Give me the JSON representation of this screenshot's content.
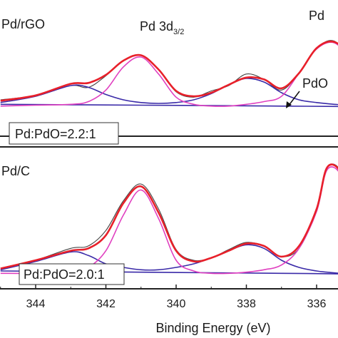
{
  "chart_data": [
    {
      "type": "line",
      "panel_label": "Pd/rGO",
      "annotations": [
        "Pd 3d3/2",
        "Pd",
        "PdO"
      ],
      "ratio_label": "Pd:PdO=2.2:1",
      "xlim": [
        345.0,
        334.6
      ],
      "x_reversed": true,
      "series": [
        {
          "role": "raw",
          "color": "#444444",
          "x": [
            345.0,
            344.0,
            343.0,
            342.5,
            342.0,
            341.5,
            341.0,
            340.5,
            340.0,
            339.5,
            339.0,
            338.5,
            338.0,
            337.5,
            337.0,
            336.5,
            336.0,
            335.5,
            335.0,
            334.6
          ],
          "y": [
            0.08,
            0.13,
            0.24,
            0.22,
            0.35,
            0.52,
            0.58,
            0.42,
            0.17,
            0.11,
            0.18,
            0.24,
            0.37,
            0.31,
            0.19,
            0.38,
            0.66,
            0.74,
            0.52,
            0.33
          ]
        },
        {
          "role": "envelope",
          "color": "#e8202a",
          "x": [
            345.0,
            344.0,
            343.0,
            342.5,
            342.0,
            341.5,
            341.0,
            340.5,
            340.0,
            339.5,
            339.0,
            338.5,
            338.0,
            337.5,
            337.0,
            336.5,
            336.0,
            335.5,
            335.0,
            334.6
          ],
          "y": [
            0.07,
            0.13,
            0.26,
            0.27,
            0.36,
            0.52,
            0.58,
            0.42,
            0.18,
            0.12,
            0.16,
            0.25,
            0.33,
            0.31,
            0.21,
            0.38,
            0.66,
            0.73,
            0.56,
            0.34
          ]
        },
        {
          "role": "Pd component",
          "color": "#e040c0",
          "x": [
            345.0,
            344.0,
            343.0,
            342.5,
            342.0,
            341.5,
            341.0,
            340.5,
            340.0,
            339.5,
            339.0,
            338.5,
            338.0,
            337.5,
            337.0,
            336.5,
            336.0,
            335.5,
            335.0,
            334.6
          ],
          "y": [
            0.01,
            0.02,
            0.03,
            0.06,
            0.19,
            0.45,
            0.56,
            0.37,
            0.11,
            0.03,
            0.01,
            0.01,
            0.03,
            0.06,
            0.12,
            0.38,
            0.65,
            0.72,
            0.52,
            0.3
          ]
        },
        {
          "role": "PdO component",
          "color": "#3a2aa8",
          "x": [
            345.0,
            344.0,
            343.0,
            342.5,
            342.0,
            341.5,
            341.0,
            340.5,
            340.0,
            339.5,
            339.0,
            338.5,
            338.0,
            337.5,
            337.0,
            336.5,
            336.0,
            335.5,
            335.0,
            334.6
          ],
          "y": [
            0.05,
            0.12,
            0.24,
            0.22,
            0.14,
            0.08,
            0.05,
            0.04,
            0.05,
            0.08,
            0.15,
            0.25,
            0.32,
            0.28,
            0.16,
            0.08,
            0.05,
            0.03,
            0.02,
            0.01
          ]
        },
        {
          "role": "background",
          "color": "#3a2aa8",
          "x": [
            345.0,
            343.0,
            341.0,
            339.0,
            337.0,
            335.0,
            334.6
          ],
          "y": [
            0.03,
            0.025,
            0.02,
            0.015,
            0.01,
            0.005,
            0.0
          ]
        }
      ]
    },
    {
      "type": "line",
      "panel_label": "Pd/C",
      "ratio_label": "Pd:PdO=2.0:1",
      "xlim": [
        345.0,
        334.6
      ],
      "x_reversed": true,
      "xlabel": "Binding Energy (eV)",
      "xticks": [
        344,
        342,
        340,
        338,
        336
      ],
      "tick_labels": [
        "344",
        "342",
        "340",
        "338",
        "336"
      ],
      "series": [
        {
          "role": "raw",
          "color": "#444444",
          "x": [
            345.0,
            344.0,
            343.0,
            342.5,
            342.0,
            341.5,
            341.0,
            340.5,
            340.0,
            339.5,
            339.0,
            338.5,
            338.0,
            337.5,
            337.0,
            336.5,
            336.0,
            335.7,
            335.3,
            335.0,
            334.6
          ],
          "y": [
            0.04,
            0.12,
            0.22,
            0.24,
            0.37,
            0.62,
            0.76,
            0.55,
            0.21,
            0.12,
            0.14,
            0.21,
            0.27,
            0.24,
            0.15,
            0.22,
            0.54,
            0.9,
            0.86,
            0.49,
            0.22
          ]
        },
        {
          "role": "envelope",
          "color": "#e8202a",
          "x": [
            345.0,
            344.0,
            343.0,
            342.5,
            342.0,
            341.5,
            341.0,
            340.5,
            340.0,
            339.5,
            339.0,
            338.5,
            338.0,
            337.5,
            337.0,
            336.5,
            336.0,
            335.7,
            335.3,
            335.0,
            334.6
          ],
          "y": [
            0.05,
            0.12,
            0.2,
            0.22,
            0.33,
            0.6,
            0.74,
            0.52,
            0.2,
            0.11,
            0.14,
            0.2,
            0.26,
            0.24,
            0.15,
            0.24,
            0.55,
            0.9,
            0.85,
            0.5,
            0.22
          ]
        },
        {
          "role": "Pd component",
          "color": "#e040c0",
          "x": [
            345.0,
            344.0,
            343.0,
            342.5,
            342.0,
            341.5,
            341.0,
            340.5,
            340.0,
            339.5,
            339.0,
            338.5,
            338.0,
            337.5,
            337.0,
            336.5,
            336.0,
            335.7,
            335.3,
            335.0,
            334.6
          ],
          "y": [
            0.01,
            0.01,
            0.02,
            0.06,
            0.2,
            0.5,
            0.71,
            0.47,
            0.12,
            0.03,
            0.01,
            0.01,
            0.02,
            0.04,
            0.08,
            0.22,
            0.53,
            0.88,
            0.83,
            0.48,
            0.2
          ]
        },
        {
          "role": "PdO component",
          "color": "#3a2aa8",
          "x": [
            345.0,
            344.0,
            343.0,
            342.5,
            342.0,
            341.5,
            341.0,
            340.5,
            340.0,
            339.5,
            339.0,
            338.5,
            338.0,
            337.5,
            337.0,
            336.5,
            336.0,
            335.7,
            335.3,
            335.0,
            334.6
          ],
          "y": [
            0.04,
            0.11,
            0.19,
            0.16,
            0.09,
            0.06,
            0.04,
            0.04,
            0.06,
            0.09,
            0.14,
            0.2,
            0.25,
            0.22,
            0.12,
            0.06,
            0.03,
            0.02,
            0.01,
            0.01,
            0.0
          ]
        },
        {
          "role": "background",
          "color": "#3a2aa8",
          "x": [
            345.0,
            343.0,
            341.0,
            339.0,
            337.0,
            335.0,
            334.6
          ],
          "y": [
            0.03,
            0.025,
            0.02,
            0.015,
            0.01,
            0.005,
            0.0
          ]
        }
      ]
    }
  ]
}
